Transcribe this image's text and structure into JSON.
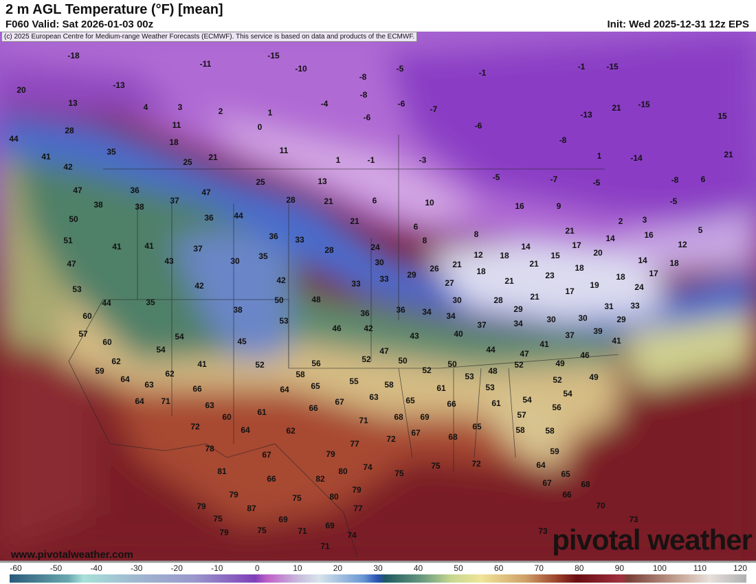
{
  "header": {
    "title": "2 m AGL Temperature (°F) [mean]",
    "valid": "F060 Valid: Sat 2026-01-03 00z",
    "init": "Init: Wed 2025-12-31 12z EPS",
    "credit": "(c) 2025 European Centre for Medium-range Weather Forecasts (ECMWF). This service is based on data and products of the ECMWF."
  },
  "map": {
    "site": "www.pivotalweather.com",
    "brand": "pivotal weather",
    "labels": [
      "-18",
      "-11",
      "-15",
      "-10",
      "-8",
      "-5",
      "-1",
      "-1",
      "-15",
      "20",
      "13",
      "-13",
      "4",
      "3",
      "2",
      "1",
      "-4",
      "-8",
      "-6",
      "-7",
      "21",
      "-15",
      "15",
      "28",
      "11",
      "0",
      "-6",
      "-6",
      "-13",
      "44",
      "18",
      "11",
      "-8",
      "35",
      "21",
      "25",
      "1",
      "-1",
      "-3",
      "1",
      "-14",
      "21",
      "41",
      "42",
      "47",
      "36",
      "47",
      "25",
      "13",
      "-5",
      "-7",
      "-5",
      "-8",
      "6",
      "38",
      "38",
      "37",
      "28",
      "21",
      "6",
      "10",
      "-5",
      "50",
      "36",
      "44",
      "21",
      "6",
      "16",
      "9",
      "2",
      "3",
      "5",
      "51",
      "41",
      "41",
      "37",
      "36",
      "33",
      "8",
      "8",
      "21",
      "14",
      "16",
      "12",
      "47",
      "43",
      "30",
      "35",
      "28",
      "24",
      "30",
      "12",
      "18",
      "14",
      "17",
      "15",
      "20",
      "14",
      "18",
      "53",
      "42",
      "42",
      "33",
      "33",
      "29",
      "26",
      "21",
      "18",
      "21",
      "23",
      "18",
      "17",
      "18",
      "44",
      "35",
      "50",
      "48",
      "27",
      "21",
      "19",
      "24",
      "60",
      "38",
      "53",
      "36",
      "36",
      "34",
      "30",
      "28",
      "29",
      "21",
      "17",
      "31",
      "33",
      "57",
      "46",
      "42",
      "34",
      "37",
      "34",
      "30",
      "30",
      "29",
      "54",
      "45",
      "40",
      "43",
      "39",
      "37",
      "41",
      "60",
      "54",
      "47",
      "41",
      "44",
      "47",
      "62",
      "41",
      "52",
      "56",
      "52",
      "50",
      "50",
      "49",
      "46",
      "59",
      "62",
      "58",
      "52",
      "53",
      "48",
      "52",
      "52",
      "49",
      "64",
      "63",
      "66",
      "55",
      "58",
      "53",
      "65",
      "64",
      "61",
      "54",
      "64",
      "71",
      "63",
      "67",
      "63",
      "65",
      "66",
      "61",
      "54",
      "56",
      "61",
      "66",
      "60",
      "68",
      "69",
      "57",
      "71",
      "72",
      "64",
      "62",
      "65",
      "58",
      "58",
      "67",
      "72",
      "68",
      "77",
      "72",
      "59",
      "78",
      "67",
      "79",
      "75",
      "81",
      "74",
      "80",
      "75",
      "64",
      "65",
      "66",
      "82",
      "68",
      "67",
      "79",
      "75",
      "80",
      "79",
      "66",
      "87",
      "77",
      "79",
      "70",
      "75",
      "69",
      "73",
      "69",
      "71",
      "75",
      "79",
      "74",
      "73",
      "71"
    ]
  },
  "colorbar": {
    "unit": "°F",
    "ticks": [
      "-60",
      "-50",
      "-40",
      "-30",
      "-20",
      "-10",
      "0",
      "10",
      "20",
      "30",
      "40",
      "50",
      "60",
      "70",
      "80",
      "90",
      "100",
      "110",
      "120"
    ],
    "range": [
      -60,
      120
    ]
  }
}
